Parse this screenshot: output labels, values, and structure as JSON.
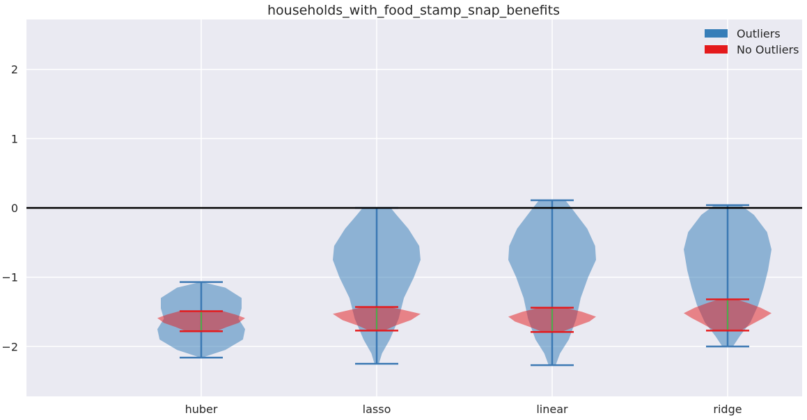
{
  "chart_data": {
    "type": "violin",
    "title": "households_with_food_stamp_snap_benefits",
    "xlabel": "",
    "ylabel": "",
    "categories": [
      "huber",
      "lasso",
      "linear",
      "ridge"
    ],
    "ylim": [
      -2.72,
      2.72
    ],
    "yticks": [
      -2,
      -1,
      0,
      1,
      2
    ],
    "ytick_labels": [
      "−2",
      "−1",
      "0",
      "1",
      "2"
    ],
    "reference_line_y": 0,
    "grid": true,
    "legend_position": "top-right",
    "series": [
      {
        "name": "Outliers",
        "color": "#377eb8",
        "violins": [
          {
            "min": -2.16,
            "max": -1.07,
            "profile": [
              [
                -2.16,
                0.02
              ],
              [
                -2.05,
                0.55
              ],
              [
                -1.9,
                0.95
              ],
              [
                -1.75,
                1.0
              ],
              [
                -1.6,
                0.85
              ],
              [
                -1.45,
                0.92
              ],
              [
                -1.3,
                0.92
              ],
              [
                -1.15,
                0.55
              ],
              [
                -1.07,
                0.02
              ]
            ]
          },
          {
            "min": -2.25,
            "max": 0.0,
            "profile": [
              [
                -2.25,
                0.05
              ],
              [
                -2.1,
                0.12
              ],
              [
                -1.9,
                0.3
              ],
              [
                -1.6,
                0.5
              ],
              [
                -1.3,
                0.62
              ],
              [
                -1.0,
                0.85
              ],
              [
                -0.75,
                1.0
              ],
              [
                -0.55,
                0.97
              ],
              [
                -0.3,
                0.72
              ],
              [
                -0.1,
                0.45
              ],
              [
                0.0,
                0.32
              ]
            ]
          },
          {
            "min": -2.27,
            "max": 0.11,
            "profile": [
              [
                -2.27,
                0.08
              ],
              [
                -2.1,
                0.18
              ],
              [
                -1.9,
                0.38
              ],
              [
                -1.6,
                0.55
              ],
              [
                -1.3,
                0.65
              ],
              [
                -1.0,
                0.82
              ],
              [
                -0.75,
                1.0
              ],
              [
                -0.55,
                0.98
              ],
              [
                -0.3,
                0.8
              ],
              [
                -0.05,
                0.5
              ],
              [
                0.11,
                0.3
              ]
            ]
          },
          {
            "min": -2.0,
            "max": 0.04,
            "profile": [
              [
                -2.0,
                0.12
              ],
              [
                -1.85,
                0.28
              ],
              [
                -1.65,
                0.52
              ],
              [
                -1.4,
                0.7
              ],
              [
                -1.15,
                0.82
              ],
              [
                -0.9,
                0.92
              ],
              [
                -0.6,
                1.0
              ],
              [
                -0.35,
                0.9
              ],
              [
                -0.1,
                0.6
              ],
              [
                0.04,
                0.3
              ]
            ]
          }
        ]
      },
      {
        "name": "No Outliers",
        "color": "#e41a1c",
        "violins": [
          {
            "min": -1.78,
            "max": -1.49,
            "profile": [
              [
                -1.78,
                0.35
              ],
              [
                -1.72,
                0.58
              ],
              [
                -1.66,
                0.85
              ],
              [
                -1.59,
                1.0
              ],
              [
                -1.54,
                0.78
              ],
              [
                -1.49,
                0.5
              ]
            ]
          },
          {
            "min": -1.77,
            "max": -1.43,
            "profile": [
              [
                -1.77,
                0.18
              ],
              [
                -1.7,
                0.42
              ],
              [
                -1.62,
                0.78
              ],
              [
                -1.53,
                1.0
              ],
              [
                -1.47,
                0.6
              ],
              [
                -1.43,
                0.28
              ]
            ]
          },
          {
            "min": -1.79,
            "max": -1.44,
            "profile": [
              [
                -1.79,
                0.22
              ],
              [
                -1.72,
                0.5
              ],
              [
                -1.64,
                0.85
              ],
              [
                -1.57,
                1.0
              ],
              [
                -1.5,
                0.68
              ],
              [
                -1.44,
                0.3
              ]
            ]
          },
          {
            "min": -1.77,
            "max": -1.32,
            "profile": [
              [
                -1.77,
                0.3
              ],
              [
                -1.68,
                0.55
              ],
              [
                -1.59,
                0.82
              ],
              [
                -1.52,
                1.0
              ],
              [
                -1.44,
                0.75
              ],
              [
                -1.37,
                0.45
              ],
              [
                -1.32,
                0.2
              ]
            ]
          }
        ]
      }
    ]
  }
}
